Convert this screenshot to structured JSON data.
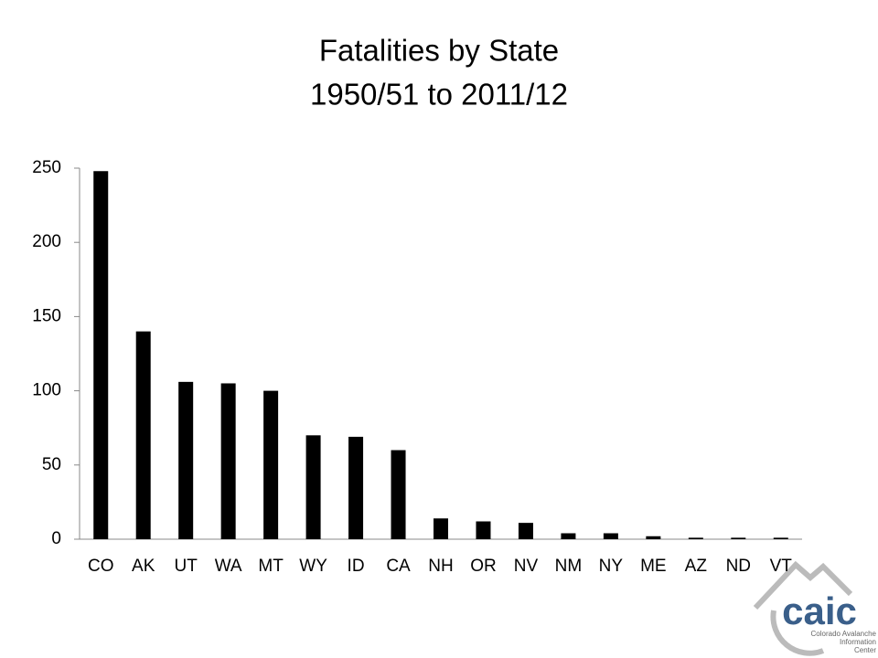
{
  "chart_data": {
    "type": "bar",
    "title": "Fatalities by State",
    "subtitle": "1950/51 to 2011/12",
    "categories": [
      "CO",
      "AK",
      "UT",
      "WA",
      "MT",
      "WY",
      "ID",
      "CA",
      "NH",
      "OR",
      "NV",
      "NM",
      "NY",
      "ME",
      "AZ",
      "ND",
      "VT"
    ],
    "values": [
      248,
      140,
      106,
      105,
      100,
      70,
      69,
      60,
      14,
      12,
      11,
      4,
      4,
      2,
      1,
      1,
      1
    ],
    "color": "#000000",
    "ylim": [
      0,
      250
    ],
    "yticks": [
      0,
      50,
      100,
      150,
      200,
      250
    ],
    "grid": false
  },
  "logo": {
    "name": "caic",
    "lines": [
      "Colorado Avalanche",
      "Information",
      "Center"
    ]
  }
}
